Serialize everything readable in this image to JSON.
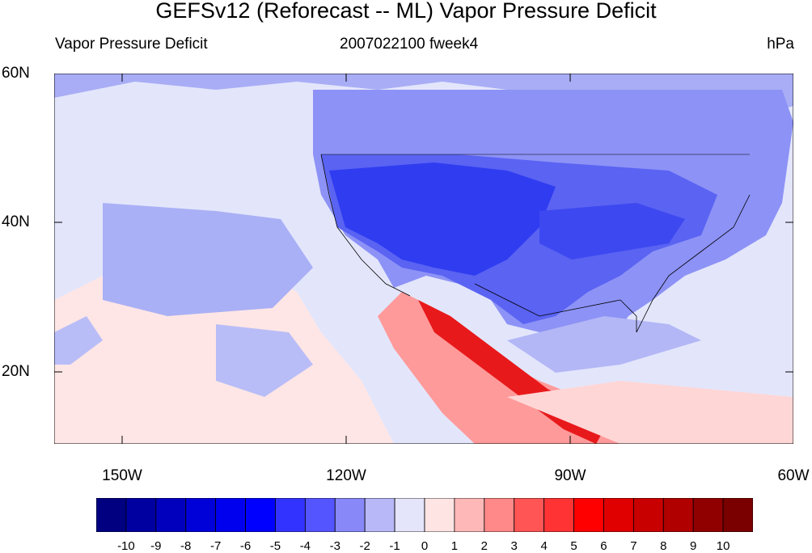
{
  "title": "GEFSv12 (Reforecast -- ML) Vapor Pressure Deficit",
  "subtitle_left": "Vapor Pressure Deficit",
  "subtitle_center": "2007022100 fweek4",
  "subtitle_right": "hPa",
  "lat_labels": [
    "60N",
    "40N",
    "20N"
  ],
  "lon_labels": [
    "150W",
    "120W",
    "90W",
    "60W"
  ],
  "colorbar": {
    "labels": [
      "-10",
      "-9",
      "-8",
      "-7",
      "-6",
      "-5",
      "-4",
      "-3",
      "-2",
      "-1",
      "0",
      "1",
      "2",
      "3",
      "4",
      "5",
      "6",
      "7",
      "8",
      "9",
      "10"
    ],
    "colors": [
      "#000080",
      "#0000a0",
      "#0000bd",
      "#0000d8",
      "#0000ef",
      "#0000ff",
      "#3333ff",
      "#5555ff",
      "#8888f8",
      "#b8b8f8",
      "#e4e4fa",
      "#ffe4e4",
      "#ffb8b8",
      "#ff8888",
      "#ff5555",
      "#ff3333",
      "#ff0000",
      "#e00000",
      "#c80000",
      "#b00000",
      "#900000",
      "#7a0000"
    ]
  },
  "colors": {
    "ocean_light": "#dcdff8",
    "land_blue_mid": "#8a8ef5",
    "land_blue_deep": "#2f3cf0",
    "warm_pink": "#ffd6d6",
    "warm_red": "#e8191b"
  }
}
